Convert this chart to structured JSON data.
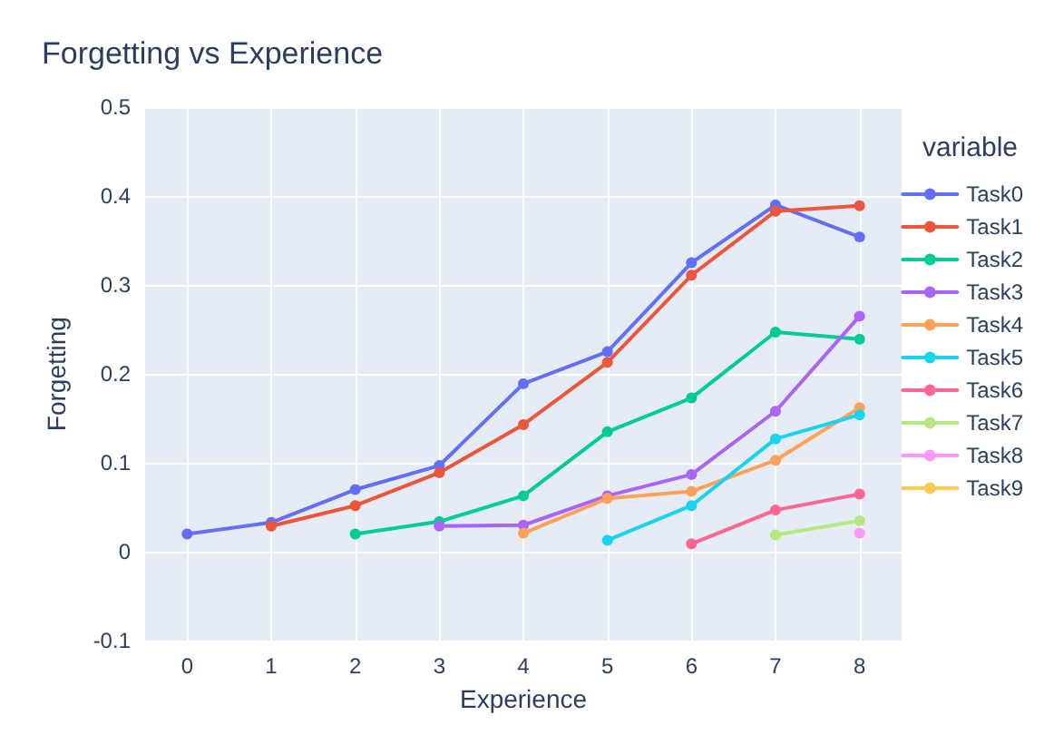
{
  "chart_data": {
    "type": "line",
    "title": "Forgetting vs Experience",
    "xlabel": "Experience",
    "ylabel": "Forgetting",
    "legend_title": "variable",
    "x": [
      0,
      1,
      2,
      3,
      4,
      5,
      6,
      7,
      8
    ],
    "series": [
      {
        "name": "Task0",
        "color": "#636efa",
        "values": [
          0.02,
          0.033,
          0.07,
          0.097,
          0.189,
          0.225,
          0.325,
          0.39,
          0.354
        ]
      },
      {
        "name": "Task1",
        "color": "#ef553b",
        "values": [
          null,
          0.029,
          0.052,
          0.089,
          0.143,
          0.213,
          0.311,
          0.383,
          0.389
        ]
      },
      {
        "name": "Task2",
        "color": "#00cc96",
        "values": [
          null,
          null,
          0.02,
          0.034,
          0.063,
          0.135,
          0.173,
          0.247,
          0.239
        ]
      },
      {
        "name": "Task3",
        "color": "#ab63fa",
        "values": [
          null,
          null,
          null,
          0.029,
          0.03,
          0.063,
          0.087,
          0.158,
          0.265
        ]
      },
      {
        "name": "Task4",
        "color": "#ffa15a",
        "values": [
          null,
          null,
          null,
          null,
          0.021,
          0.06,
          0.068,
          0.103,
          0.162
        ]
      },
      {
        "name": "Task5",
        "color": "#19d3f3",
        "values": [
          null,
          null,
          null,
          null,
          null,
          0.013,
          0.052,
          0.127,
          0.154
        ]
      },
      {
        "name": "Task6",
        "color": "#ff6692",
        "values": [
          null,
          null,
          null,
          null,
          null,
          null,
          0.009,
          0.047,
          0.065
        ]
      },
      {
        "name": "Task7",
        "color": "#b6e880",
        "values": [
          null,
          null,
          null,
          null,
          null,
          null,
          null,
          0.019,
          0.035
        ]
      },
      {
        "name": "Task8",
        "color": "#ff97ff",
        "values": [
          null,
          null,
          null,
          null,
          null,
          null,
          null,
          null,
          0.021
        ]
      },
      {
        "name": "Task9",
        "color": "#fecb52",
        "values": [
          null,
          null,
          null,
          null,
          null,
          null,
          null,
          null,
          null
        ]
      }
    ],
    "xlim": [
      -0.5,
      8.5
    ],
    "xticks": [
      0,
      1,
      2,
      3,
      4,
      5,
      6,
      7,
      8
    ],
    "ylim": [
      -0.1,
      0.5
    ],
    "yticks": [
      -0.1,
      0,
      0.1,
      0.2,
      0.3,
      0.4,
      0.5
    ],
    "grid": true,
    "legend": "right",
    "marker": "circle",
    "line_style": "solid"
  }
}
